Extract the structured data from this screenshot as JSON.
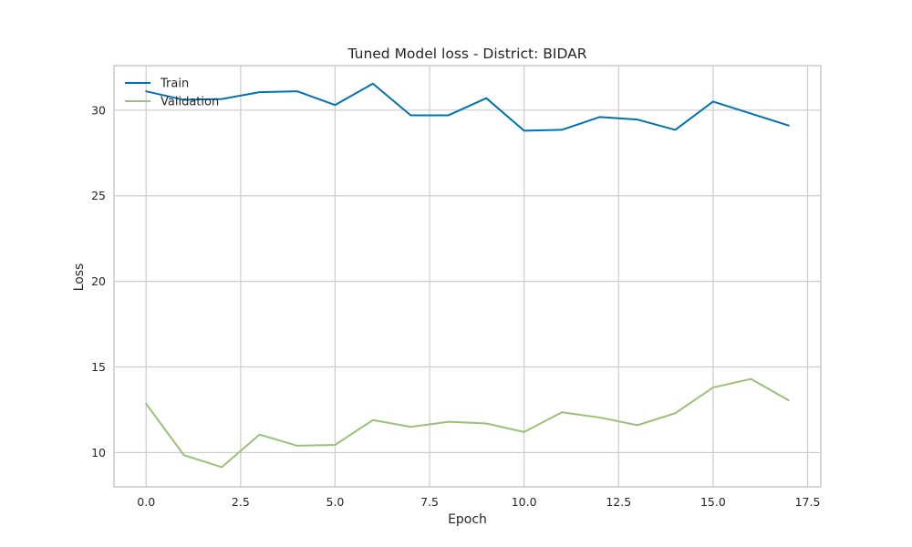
{
  "chart_data": {
    "type": "line",
    "title": "Tuned Model loss - District: BIDAR",
    "xlabel": "Epoch",
    "ylabel": "Loss",
    "xlim": [
      -0.85,
      17.85
    ],
    "ylim": [
      8.0,
      32.6
    ],
    "xticks": [
      0.0,
      2.5,
      5.0,
      7.5,
      10.0,
      12.5,
      15.0,
      17.5
    ],
    "xtick_labels": [
      "0.0",
      "2.5",
      "5.0",
      "7.5",
      "10.0",
      "12.5",
      "15.0",
      "17.5"
    ],
    "yticks": [
      10,
      15,
      20,
      25,
      30
    ],
    "ytick_labels": [
      "10",
      "15",
      "20",
      "25",
      "30"
    ],
    "grid": true,
    "legend_position": "top-left",
    "x": [
      0,
      1,
      2,
      3,
      4,
      5,
      6,
      7,
      8,
      9,
      10,
      11,
      12,
      13,
      14,
      15,
      16,
      17
    ],
    "series": [
      {
        "name": "Train",
        "color": "#0072B2",
        "values": [
          31.1,
          30.6,
          30.65,
          31.05,
          31.1,
          30.3,
          31.55,
          29.7,
          29.7,
          30.7,
          28.8,
          28.85,
          29.6,
          29.45,
          28.85,
          30.5,
          29.8,
          29.1
        ]
      },
      {
        "name": "Validation",
        "color": "#9BC178",
        "values": [
          12.85,
          9.85,
          9.15,
          11.05,
          10.4,
          10.45,
          11.9,
          11.5,
          11.8,
          11.7,
          11.2,
          12.35,
          12.05,
          11.6,
          12.3,
          13.8,
          14.3,
          13.05
        ]
      }
    ]
  }
}
